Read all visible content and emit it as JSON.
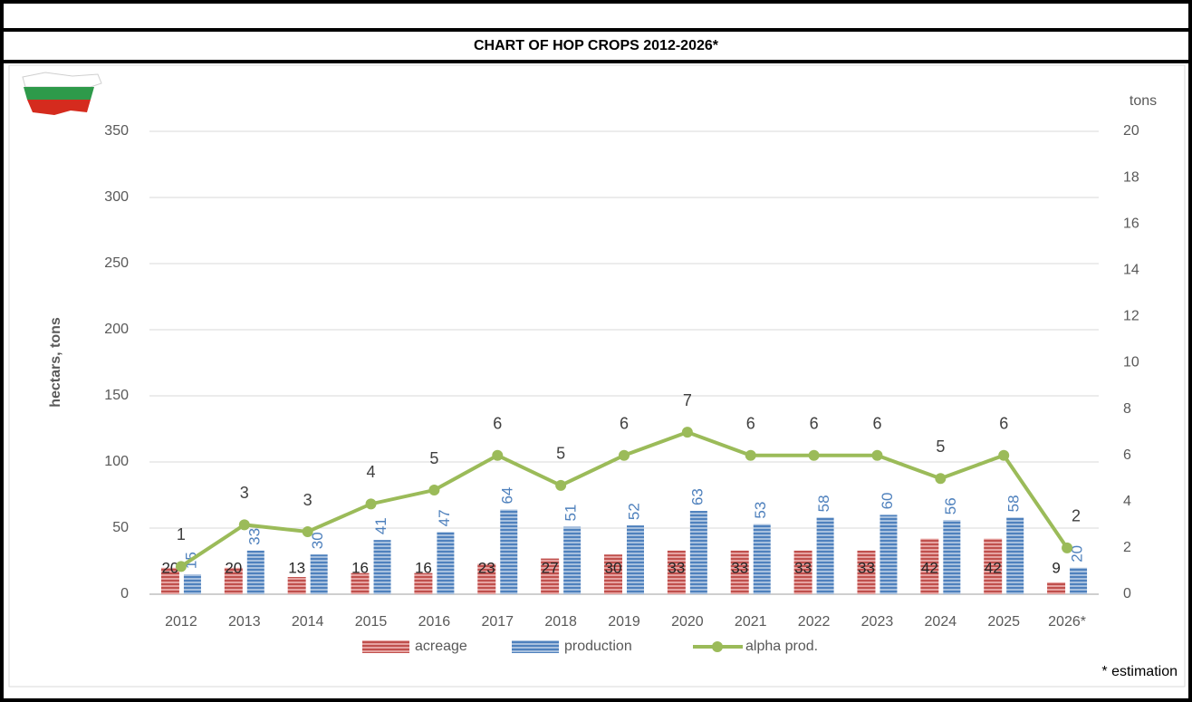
{
  "chart_data": {
    "type": "bar_line",
    "title": "CHART OF HOP CROPS 2012-2026*",
    "y_label": "hectars, tons",
    "y2_label": "tons",
    "annotation": "* estimation",
    "categories": [
      "2012",
      "2013",
      "2014",
      "2015",
      "2016",
      "2017",
      "2018",
      "2019",
      "2020",
      "2021",
      "2022",
      "2023",
      "2024",
      "2025",
      "2026*"
    ],
    "series": [
      {
        "name": "acreage",
        "color": "#c0504d",
        "values": [
          20,
          20,
          13,
          16,
          16,
          23,
          27,
          30,
          33,
          33,
          33,
          33,
          42,
          42,
          9
        ]
      },
      {
        "name": "production",
        "color": "#4f81bd",
        "values": [
          15,
          33,
          30,
          41,
          47,
          64,
          51,
          52,
          63,
          53,
          58,
          60,
          56,
          58,
          20
        ]
      },
      {
        "name": "alpha prod.",
        "color": "#9bbb59",
        "axis": "y2",
        "values": [
          1.2,
          3.0,
          2.7,
          3.9,
          4.5,
          6.0,
          4.7,
          6.0,
          7.0,
          6.0,
          6.0,
          6.0,
          5.0,
          6.0,
          2.0
        ],
        "value_labels": [
          "1",
          "3",
          "3",
          "4",
          "5",
          "6",
          "5",
          "6",
          "7",
          "6",
          "6",
          "6",
          "5",
          "6",
          "2"
        ]
      }
    ],
    "ylim": [
      0,
      350
    ],
    "yticks": [
      0,
      50,
      100,
      150,
      200,
      250,
      300,
      350
    ],
    "y2lim": [
      0,
      20
    ],
    "y2ticks": [
      0,
      2,
      4,
      6,
      8,
      10,
      12,
      14,
      16,
      18,
      20
    ],
    "grid": true
  }
}
